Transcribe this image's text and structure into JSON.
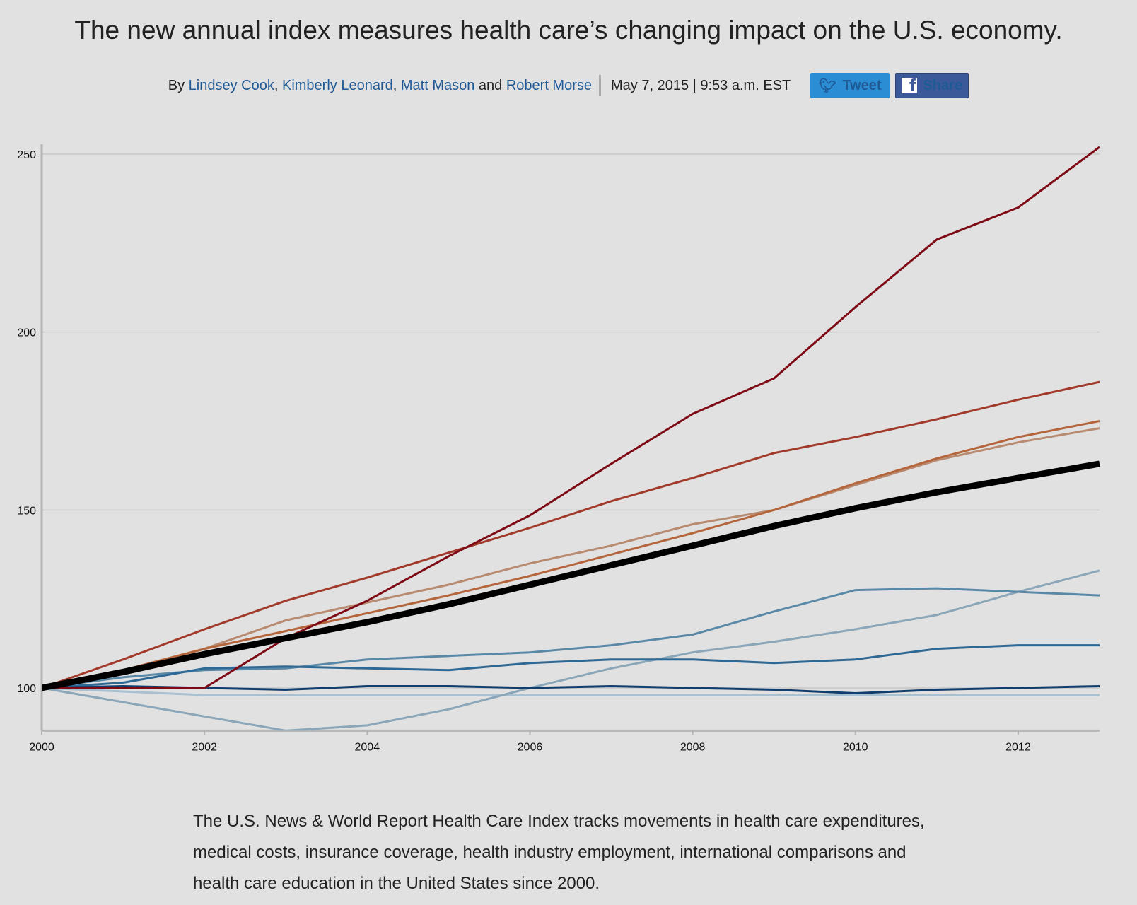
{
  "headline": "The new annual index measures health care’s changing impact on the U.S. economy.",
  "byline": {
    "by": "By",
    "authors": [
      "Lindsey Cook",
      "Kimberly Leonard",
      "Matt Mason",
      "Robert Morse"
    ],
    "comma": ",",
    "and": "and",
    "date": "May 7, 2015 | 9:53 a.m. EST",
    "tweet_label": "Tweet",
    "share_label": "Share",
    "tweet_icon": "twitter-bird-icon",
    "share_icon": "facebook-f-icon"
  },
  "chart_data": {
    "type": "line",
    "title": "",
    "xlabel": "",
    "ylabel": "",
    "xlim": [
      2000,
      2013
    ],
    "ylim": [
      88,
      252
    ],
    "x_ticks": [
      2000,
      2002,
      2004,
      2006,
      2008,
      2010,
      2012
    ],
    "y_ticks": [
      100,
      150,
      200,
      250
    ],
    "grid": "horizontal",
    "legend": "none",
    "x": [
      2000,
      2001,
      2002,
      2003,
      2004,
      2005,
      2006,
      2007,
      2008,
      2009,
      2010,
      2011,
      2012,
      2013
    ],
    "series": [
      {
        "color": "#a8c0d0",
        "width": 3,
        "values": [
          100,
          99,
          98,
          98,
          98,
          98,
          98,
          98,
          98,
          98,
          98,
          98,
          98,
          98
        ]
      },
      {
        "color": "#8aa6b8",
        "width": 3,
        "values": [
          100,
          96,
          92,
          88,
          89.5,
          94,
          100,
          105.5,
          110,
          113,
          116.5,
          120.5,
          127,
          133
        ]
      },
      {
        "color": "#5a89a8",
        "width": 3,
        "values": [
          100,
          103,
          105,
          105.5,
          108,
          109,
          110,
          112,
          115,
          121.5,
          127.5,
          128,
          127,
          126
        ]
      },
      {
        "color": "#2e6895",
        "width": 3,
        "values": [
          100,
          101.5,
          105.5,
          106,
          105.5,
          105,
          107,
          108,
          108,
          107,
          108,
          111,
          112,
          112
        ]
      },
      {
        "color": "#123e6e",
        "width": 3,
        "values": [
          100,
          100.5,
          100,
          99.5,
          100.5,
          100.5,
          100,
          100.5,
          100,
          99.5,
          98.5,
          99.5,
          100,
          100.5
        ]
      },
      {
        "color": "#b88a70",
        "width": 3,
        "values": [
          100,
          104,
          111,
          119,
          124,
          129,
          135,
          140,
          146,
          150,
          157,
          164,
          169,
          173
        ]
      },
      {
        "color": "#b5653c",
        "width": 3,
        "values": [
          100,
          105,
          111,
          116,
          121,
          126,
          131.5,
          137.5,
          143.5,
          150,
          157.5,
          164.5,
          170.5,
          175
        ]
      },
      {
        "color": "#a13a2a",
        "width": 3,
        "values": [
          100,
          108,
          116.5,
          124.5,
          131,
          138,
          145,
          152.5,
          159,
          166,
          170.5,
          175.5,
          181,
          186
        ]
      },
      {
        "color": "#7d0a14",
        "width": 3,
        "values": [
          100,
          100,
          100,
          114,
          124.5,
          137,
          148.5,
          163,
          177,
          187,
          207,
          226,
          235,
          252
        ]
      },
      {
        "color": "#000000",
        "width": 9,
        "values": [
          100,
          104.5,
          109.5,
          114,
          118.5,
          123.5,
          129,
          134.5,
          140,
          145.5,
          150.5,
          155,
          159,
          163
        ]
      }
    ]
  },
  "caption": "The U.S. News & World Report Health Care Index tracks movements in health care expenditures, medical costs, insurance coverage, health industry employment, international comparisons and health care education in the United States since 2000."
}
